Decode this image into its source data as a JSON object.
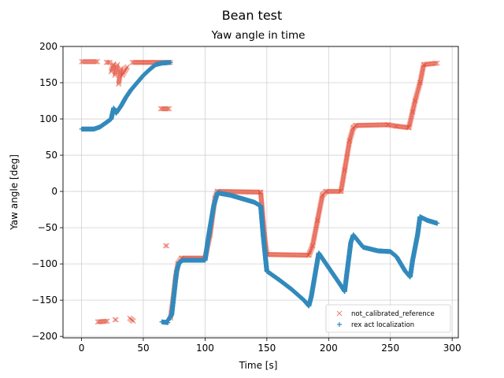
{
  "chart_data": {
    "type": "scatter",
    "suptitle": "Bean test",
    "title": "Yaw angle in time",
    "xlabel": "Time [s]",
    "ylabel": "Yaw angle [deg]",
    "xlim": [
      -15,
      305
    ],
    "ylim": [
      -202,
      200
    ],
    "xticks": [
      0,
      50,
      100,
      150,
      200,
      250,
      300
    ],
    "yticks": [
      -200,
      -150,
      -100,
      -50,
      0,
      50,
      100,
      150,
      200
    ],
    "grid": true,
    "legend_position": "lower-right",
    "colors": {
      "reference": "#E24A33",
      "localization": "#348ABD"
    },
    "series": [
      {
        "name": "not_calibrated_reference",
        "marker": "x",
        "segments": [
          [
            [
              0,
              179
            ],
            [
              13,
              179
            ]
          ],
          [
            [
              20,
              178
            ],
            [
              23,
              178
            ]
          ],
          [
            [
              24,
              165
            ],
            [
              26,
              176
            ]
          ],
          [
            [
              27,
              160
            ],
            [
              29,
              175
            ]
          ],
          [
            [
              30,
              148
            ],
            [
              32,
              170
            ]
          ],
          [
            [
              33,
              160
            ],
            [
              37,
              172
            ]
          ],
          [
            [
              41,
              178
            ],
            [
              54,
              178
            ]
          ],
          [
            [
              55,
              178
            ],
            [
              72,
              178
            ]
          ],
          [
            [
              64,
              114
            ],
            [
              71,
              114
            ]
          ],
          [
            [
              13,
              -180
            ],
            [
              21,
              -179
            ]
          ],
          [
            [
              27,
              -177
            ],
            [
              28,
              -177
            ]
          ],
          [
            [
              39,
              -175
            ],
            [
              42,
              -179
            ]
          ],
          [
            [
              68,
              -75
            ],
            [
              69,
              -75
            ]
          ],
          [
            [
              72,
              -175
            ],
            [
              74,
              -150
            ],
            [
              76,
              -120
            ],
            [
              78,
              -100
            ],
            [
              81,
              -92
            ],
            [
              100,
              -92
            ]
          ],
          [
            [
              100,
              -92
            ],
            [
              104,
              -60
            ],
            [
              108,
              -10
            ],
            [
              110,
              0
            ],
            [
              145,
              -1
            ]
          ],
          [
            [
              145,
              -1
            ],
            [
              148,
              -60
            ],
            [
              150,
              -87
            ],
            [
              184,
              -88
            ]
          ],
          [
            [
              184,
              -88
            ],
            [
              187,
              -75
            ],
            [
              191,
              -40
            ],
            [
              195,
              -5
            ],
            [
              198,
              0
            ],
            [
              210,
              0
            ]
          ],
          [
            [
              210,
              0
            ],
            [
              213,
              30
            ],
            [
              217,
              70
            ],
            [
              220,
              88
            ],
            [
              222,
              91
            ],
            [
              248,
              92
            ],
            [
              255,
              90
            ],
            [
              265,
              88
            ]
          ],
          [
            [
              265,
              88
            ],
            [
              268,
              110
            ],
            [
              270,
              125
            ],
            [
              274,
              150
            ],
            [
              277,
              175
            ],
            [
              288,
              177
            ]
          ]
        ]
      },
      {
        "name": "rex act localization",
        "marker": "+",
        "segments": [
          [
            [
              0,
              86
            ],
            [
              5,
              86
            ],
            [
              10,
              86
            ],
            [
              15,
              89
            ],
            [
              20,
              95
            ],
            [
              24,
              100
            ],
            [
              26,
              115
            ],
            [
              28,
              108
            ],
            [
              32,
              118
            ],
            [
              36,
              130
            ],
            [
              40,
              140
            ],
            [
              45,
              150
            ],
            [
              50,
              160
            ],
            [
              55,
              168
            ],
            [
              60,
              175
            ],
            [
              65,
              177
            ],
            [
              72,
              178
            ]
          ],
          [
            [
              65,
              -180
            ],
            [
              70,
              -181
            ]
          ],
          [
            [
              70,
              -178
            ],
            [
              73,
              -170
            ],
            [
              75,
              -140
            ],
            [
              77,
              -110
            ],
            [
              79,
              -98
            ],
            [
              82,
              -95
            ],
            [
              100,
              -95
            ]
          ],
          [
            [
              100,
              -95
            ],
            [
              103,
              -60
            ],
            [
              107,
              -20
            ],
            [
              110,
              -2
            ],
            [
              120,
              -5
            ],
            [
              130,
              -10
            ],
            [
              140,
              -15
            ],
            [
              145,
              -20
            ],
            [
              147,
              -60
            ],
            [
              150,
              -110
            ],
            [
              160,
              -122
            ],
            [
              170,
              -135
            ],
            [
              180,
              -150
            ],
            [
              184,
              -158
            ],
            [
              186,
              -145
            ],
            [
              189,
              -115
            ],
            [
              192,
              -85
            ],
            [
              200,
              -105
            ],
            [
              210,
              -130
            ],
            [
              213,
              -138
            ],
            [
              215,
              -110
            ],
            [
              218,
              -70
            ],
            [
              220,
              -60
            ],
            [
              228,
              -77
            ],
            [
              240,
              -82
            ],
            [
              250,
              -83
            ],
            [
              255,
              -90
            ],
            [
              262,
              -110
            ],
            [
              266,
              -118
            ],
            [
              268,
              -95
            ],
            [
              272,
              -60
            ],
            [
              274,
              -35
            ],
            [
              280,
              -40
            ],
            [
              288,
              -44
            ]
          ]
        ]
      }
    ]
  }
}
